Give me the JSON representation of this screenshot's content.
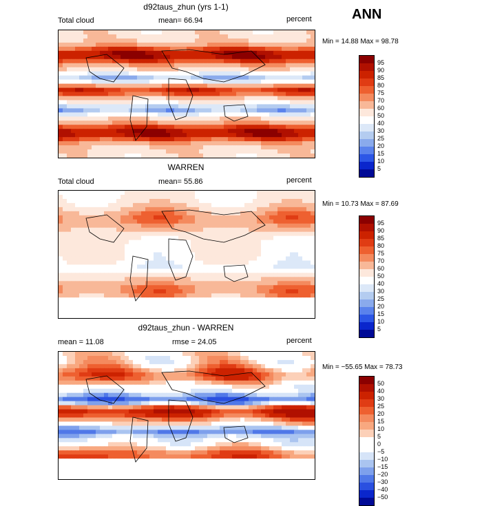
{
  "season": "ANN",
  "panels": [
    {
      "title": "d92taus_zhun (yrs 1-1)",
      "left_label": "Total cloud",
      "mean_text": "mean=  66.94",
      "units": "percent",
      "minmax": "Min =  14.88 Max =  98.78",
      "scheme": "abs",
      "field": "model"
    },
    {
      "title": "WARREN",
      "left_label": "Total cloud",
      "mean_text": "mean=  55.86",
      "units": "percent",
      "minmax": "Min =  10.73 Max =  87.69",
      "scheme": "abs",
      "field": "obs"
    },
    {
      "title": "d92taus_zhun - WARREN",
      "left_label": "mean =  11.08",
      "mean_text": "rmse =  24.05",
      "units": "percent",
      "minmax": "Min = −55.65 Max =  78.73",
      "scheme": "diff",
      "field": "diff"
    }
  ],
  "colorbars": {
    "abs": {
      "levels": [
        "95",
        "90",
        "85",
        "80",
        "75",
        "70",
        "60",
        "50",
        "40",
        "30",
        "25",
        "20",
        "15",
        "10",
        "5"
      ],
      "colors": [
        "#8b0000",
        "#b01000",
        "#cc2200",
        "#e03c14",
        "#ee6030",
        "#f48a5e",
        "#f8b898",
        "#fde8dc",
        "#ffffff",
        "#dce8f8",
        "#b4ccf0",
        "#8aaaec",
        "#5a82ec",
        "#2c56e6",
        "#0a26cc",
        "#000a96"
      ]
    },
    "diff": {
      "levels": [
        "50",
        "40",
        "30",
        "25",
        "20",
        "15",
        "10",
        "5",
        "0",
        "−5",
        "−10",
        "−15",
        "−20",
        "−30",
        "−40",
        "−50"
      ],
      "colors": [
        "#8b0000",
        "#b01000",
        "#cc2200",
        "#e03c14",
        "#ee6030",
        "#f48a5e",
        "#f8a880",
        "#fcd0b8",
        "#ffffff",
        "#ffffff",
        "#d6e4f8",
        "#aac4f0",
        "#7ea0ec",
        "#5078e8",
        "#2a50e0",
        "#0a26cc",
        "#000a96"
      ]
    }
  }
}
